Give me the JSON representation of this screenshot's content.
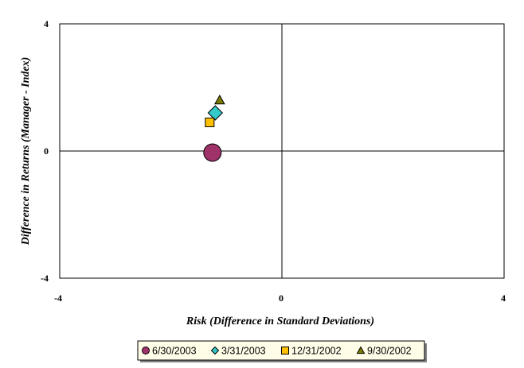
{
  "chart_data": {
    "type": "scatter",
    "title": "",
    "xlabel": "Risk (Difference in Standard Deviations)",
    "ylabel": "Difference in Returns (Manager - Index)",
    "xlim": [
      -4,
      4
    ],
    "ylim": [
      -4,
      4
    ],
    "x_ticks": [
      "-4",
      "0",
      "4"
    ],
    "y_ticks": [
      "4",
      "0",
      "-4"
    ],
    "grid": false,
    "legend_position": "bottom",
    "series": [
      {
        "name": "6/30/2003",
        "marker": "circle",
        "color": "#a0326a",
        "x": -1.25,
        "y": -0.05
      },
      {
        "name": "3/31/2003",
        "marker": "diamond",
        "color": "#33c9c9",
        "x": -1.2,
        "y": 1.2
      },
      {
        "name": "12/31/2002",
        "marker": "square",
        "color": "#ffc000",
        "x": -1.3,
        "y": 0.9
      },
      {
        "name": "9/30/2002",
        "marker": "triangle",
        "color": "#7a7a00",
        "x": -1.12,
        "y": 1.6
      }
    ]
  }
}
